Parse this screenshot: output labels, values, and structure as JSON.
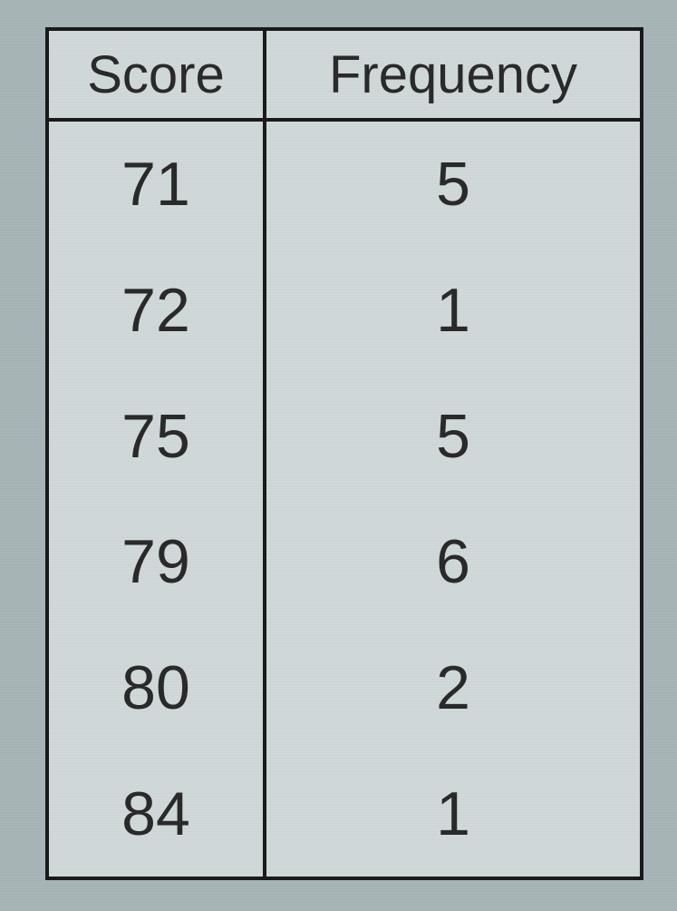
{
  "table": {
    "type": "table",
    "columns": [
      "Score",
      "Frequency"
    ],
    "rows": [
      [
        "71",
        "5"
      ],
      [
        "72",
        "1"
      ],
      [
        "75",
        "5"
      ],
      [
        "79",
        "6"
      ],
      [
        "80",
        "2"
      ],
      [
        "84",
        "1"
      ]
    ],
    "border_color": "#1a1a1a",
    "border_width": 4,
    "background_color": "#d0d8da",
    "page_background_color": "#a8b5b8",
    "header_fontsize": 58,
    "cell_fontsize": 68,
    "text_color": "#2a2a2a",
    "col1_width": 240,
    "total_width": 660
  }
}
